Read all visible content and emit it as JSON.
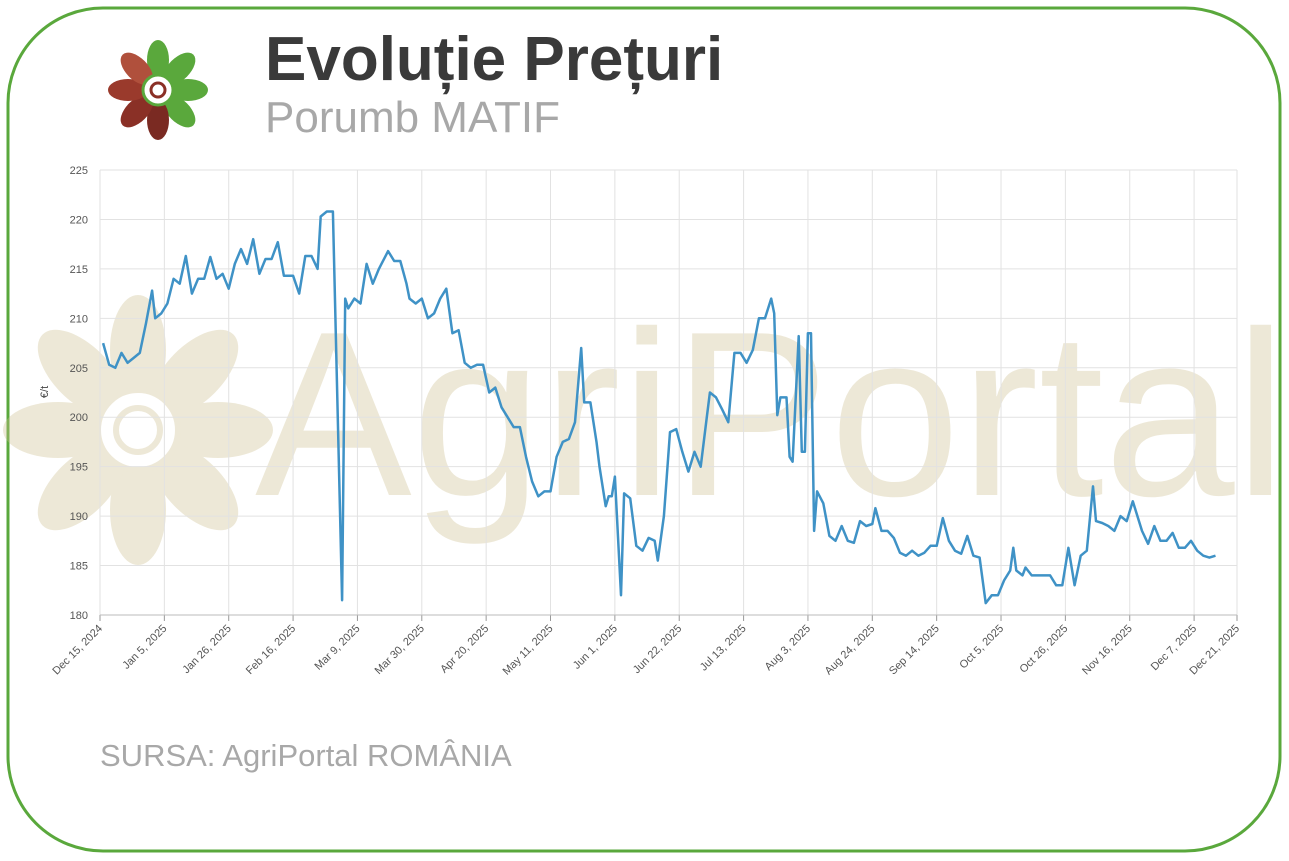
{
  "chart_data": {
    "type": "line",
    "title": "Evoluție Prețuri",
    "subtitle": "Porumb MATIF",
    "ylabel": "€/t",
    "source": "SURSA: AgriPortal ROMÂNIA",
    "watermark": "AgriPortal",
    "color": "#3f92c6",
    "grid": true,
    "ylim": [
      180,
      225
    ],
    "yticks": [
      180,
      185,
      190,
      195,
      200,
      205,
      210,
      215,
      220,
      225
    ],
    "xlim": [
      "2024-12-15",
      "2025-12-21"
    ],
    "xticks": [
      {
        "value": "2024-12-15",
        "label": "Dec 15, 2024"
      },
      {
        "value": "2025-01-05",
        "label": "Jan 5, 2025"
      },
      {
        "value": "2025-01-26",
        "label": "Jan 26, 2025"
      },
      {
        "value": "2025-02-16",
        "label": "Feb 16, 2025"
      },
      {
        "value": "2025-03-09",
        "label": "Mar 9, 2025"
      },
      {
        "value": "2025-03-30",
        "label": "Mar 30, 2025"
      },
      {
        "value": "2025-04-20",
        "label": "Apr 20, 2025"
      },
      {
        "value": "2025-05-11",
        "label": "May 11, 2025"
      },
      {
        "value": "2025-06-01",
        "label": "Jun 1, 2025"
      },
      {
        "value": "2025-06-22",
        "label": "Jun 22, 2025"
      },
      {
        "value": "2025-07-13",
        "label": "Jul 13, 2025"
      },
      {
        "value": "2025-08-03",
        "label": "Aug 3, 2025"
      },
      {
        "value": "2025-08-24",
        "label": "Aug 24, 2025"
      },
      {
        "value": "2025-09-14",
        "label": "Sep 14, 2025"
      },
      {
        "value": "2025-10-05",
        "label": "Oct 5, 2025"
      },
      {
        "value": "2025-10-26",
        "label": "Oct 26, 2025"
      },
      {
        "value": "2025-11-16",
        "label": "Nov 16, 2025"
      },
      {
        "value": "2025-12-07",
        "label": "Dec 7, 2025"
      },
      {
        "value": "2025-12-21",
        "label": "Dec 21, 2025"
      }
    ],
    "x": [
      "2024-12-16",
      "2024-12-18",
      "2024-12-20",
      "2024-12-22",
      "2024-12-24",
      "2024-12-26",
      "2024-12-28",
      "2024-12-30",
      "2025-01-01",
      "2025-01-02",
      "2025-01-04",
      "2025-01-06",
      "2025-01-08",
      "2025-01-10",
      "2025-01-12",
      "2025-01-14",
      "2025-01-16",
      "2025-01-18",
      "2025-01-20",
      "2025-01-22",
      "2025-01-24",
      "2025-01-26",
      "2025-01-28",
      "2025-01-30",
      "2025-02-01",
      "2025-02-03",
      "2025-02-05",
      "2025-02-07",
      "2025-02-09",
      "2025-02-11",
      "2025-02-13",
      "2025-02-15",
      "2025-02-16",
      "2025-02-18",
      "2025-02-20",
      "2025-02-22",
      "2025-02-24",
      "2025-02-25",
      "2025-02-27",
      "2025-03-01",
      "2025-03-04",
      "2025-03-05",
      "2025-03-06",
      "2025-03-08",
      "2025-03-10",
      "2025-03-12",
      "2025-03-14",
      "2025-03-16",
      "2025-03-19",
      "2025-03-21",
      "2025-03-23",
      "2025-03-25",
      "2025-03-26",
      "2025-03-28",
      "2025-03-30",
      "2025-04-01",
      "2025-04-03",
      "2025-04-05",
      "2025-04-07",
      "2025-04-09",
      "2025-04-11",
      "2025-04-13",
      "2025-04-15",
      "2025-04-17",
      "2025-04-19",
      "2025-04-21",
      "2025-04-23",
      "2025-04-25",
      "2025-04-27",
      "2025-04-29",
      "2025-05-01",
      "2025-05-03",
      "2025-05-05",
      "2025-05-07",
      "2025-05-09",
      "2025-05-11",
      "2025-05-13",
      "2025-05-15",
      "2025-05-17",
      "2025-05-19",
      "2025-05-21",
      "2025-05-22",
      "2025-05-24",
      "2025-05-26",
      "2025-05-27",
      "2025-05-29",
      "2025-05-30",
      "2025-05-31",
      "2025-06-01",
      "2025-06-03",
      "2025-06-04",
      "2025-06-06",
      "2025-06-08",
      "2025-06-10",
      "2025-06-12",
      "2025-06-14",
      "2025-06-15",
      "2025-06-17",
      "2025-06-19",
      "2025-06-21",
      "2025-06-23",
      "2025-06-25",
      "2025-06-27",
      "2025-06-29",
      "2025-07-01",
      "2025-07-02",
      "2025-07-04",
      "2025-07-06",
      "2025-07-08",
      "2025-07-10",
      "2025-07-12",
      "2025-07-14",
      "2025-07-16",
      "2025-07-18",
      "2025-07-20",
      "2025-07-22",
      "2025-07-23",
      "2025-07-24",
      "2025-07-25",
      "2025-07-27",
      "2025-07-28",
      "2025-07-29",
      "2025-07-31",
      "2025-08-01",
      "2025-08-02",
      "2025-08-03",
      "2025-08-04",
      "2025-08-05",
      "2025-08-06",
      "2025-08-08",
      "2025-08-10",
      "2025-08-12",
      "2025-08-14",
      "2025-08-16",
      "2025-08-18",
      "2025-08-20",
      "2025-08-22",
      "2025-08-24",
      "2025-08-25",
      "2025-08-27",
      "2025-08-29",
      "2025-08-31",
      "2025-09-02",
      "2025-09-04",
      "2025-09-06",
      "2025-09-08",
      "2025-09-10",
      "2025-09-12",
      "2025-09-14",
      "2025-09-16",
      "2025-09-18",
      "2025-09-20",
      "2025-09-22",
      "2025-09-24",
      "2025-09-26",
      "2025-09-28",
      "2025-09-30",
      "2025-10-02",
      "2025-10-04",
      "2025-10-06",
      "2025-10-08",
      "2025-10-09",
      "2025-10-10",
      "2025-10-12",
      "2025-10-13",
      "2025-10-15",
      "2025-10-17",
      "2025-10-19",
      "2025-10-21",
      "2025-10-23",
      "2025-10-25",
      "2025-10-27",
      "2025-10-29",
      "2025-10-31",
      "2025-11-02",
      "2025-11-04",
      "2025-11-05",
      "2025-11-07",
      "2025-11-09",
      "2025-11-11",
      "2025-11-13",
      "2025-11-15",
      "2025-11-17",
      "2025-11-18",
      "2025-11-20",
      "2025-11-22",
      "2025-11-24",
      "2025-11-26",
      "2025-11-28",
      "2025-11-30",
      "2025-12-02",
      "2025-12-04",
      "2025-12-06",
      "2025-12-08",
      "2025-12-10",
      "2025-12-12",
      "2025-12-14"
    ],
    "values": [
      207.5,
      205.3,
      205.0,
      206.5,
      205.5,
      206.0,
      206.5,
      209.5,
      212.8,
      210.0,
      210.5,
      211.5,
      214.0,
      213.5,
      216.3,
      212.5,
      214.0,
      214.0,
      216.2,
      214.0,
      214.5,
      213.0,
      215.5,
      217.0,
      215.5,
      218.0,
      214.5,
      216.0,
      216.0,
      217.7,
      214.3,
      214.3,
      214.3,
      212.5,
      216.3,
      216.3,
      215.0,
      220.3,
      220.8,
      220.8,
      181.5,
      212.0,
      211.0,
      212.0,
      211.5,
      215.5,
      213.5,
      215.0,
      216.8,
      215.8,
      215.8,
      213.5,
      212.0,
      211.5,
      212.0,
      210.0,
      210.5,
      212.0,
      213.0,
      208.5,
      208.8,
      205.5,
      205.0,
      205.3,
      205.3,
      202.5,
      203.0,
      201.0,
      200.0,
      199.0,
      199.0,
      196.0,
      193.5,
      192.0,
      192.5,
      192.5,
      196.0,
      197.5,
      197.8,
      199.5,
      207.0,
      201.5,
      201.5,
      197.5,
      195.0,
      191.0,
      192.0,
      192.0,
      194.0,
      182.0,
      192.3,
      191.8,
      187.0,
      186.5,
      187.8,
      187.5,
      185.5,
      190.0,
      198.5,
      198.8,
      196.5,
      194.5,
      196.5,
      195.0,
      200.0,
      202.5,
      202.0,
      200.8,
      199.5,
      206.5,
      206.5,
      205.5,
      206.8,
      210.0,
      210.0,
      212.0,
      210.5,
      200.2,
      202.0,
      202.0,
      196.0,
      195.5,
      208.2,
      196.5,
      196.5,
      208.5,
      208.5,
      188.5,
      192.5,
      191.3,
      188.0,
      187.5,
      189.0,
      187.5,
      187.3,
      189.5,
      189.0,
      189.2,
      190.8,
      188.5,
      188.5,
      187.8,
      186.3,
      186.0,
      186.5,
      186.0,
      186.3,
      187.0,
      187.0,
      189.8,
      187.5,
      186.5,
      186.2,
      188.0,
      186.0,
      185.8,
      181.2,
      182.0,
      182.0,
      183.5,
      184.5,
      186.8,
      184.5,
      184.0,
      184.8,
      184.0,
      184.0,
      184.0,
      184.0,
      183.0,
      183.0,
      186.8,
      183.0,
      186.0,
      186.5,
      193.0,
      189.5,
      189.3,
      189.0,
      188.5,
      190.0,
      189.5,
      191.5,
      190.5,
      188.5,
      187.2,
      189.0,
      187.5,
      187.5,
      188.3,
      186.8,
      186.8,
      187.5,
      186.5,
      186.0,
      185.8,
      186.0
    ]
  }
}
